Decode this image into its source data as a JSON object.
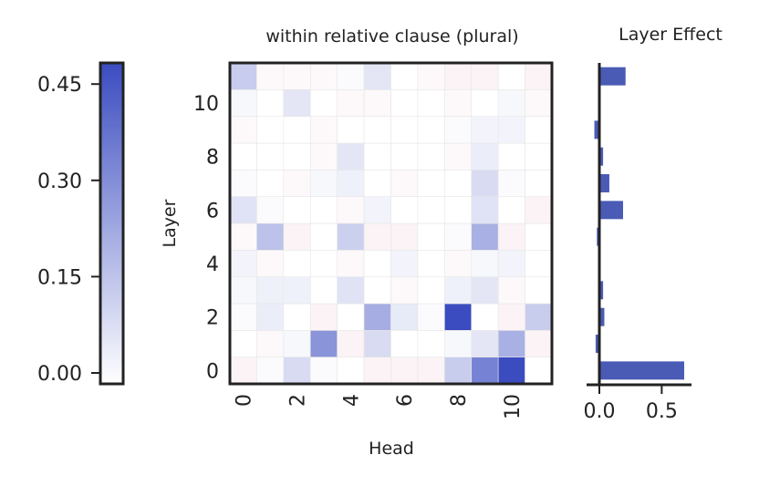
{
  "colors": {
    "positive": "#3b4cc0",
    "negative": "#b40426",
    "bar": "#4a5bb5",
    "frame": "#222222"
  },
  "chart_data": [
    {
      "type": "heatmap",
      "title": "within relative clause (plural)",
      "xlabel": "Head",
      "ylabel": "Layer",
      "x_ticks": [
        "0",
        "2",
        "4",
        "6",
        "8",
        "10"
      ],
      "y_ticks": [
        "0",
        "2",
        "4",
        "6",
        "8",
        "10"
      ],
      "rows_bottom_to_top": [
        [
          -0.02,
          0.01,
          0.1,
          0.01,
          0.0,
          -0.02,
          -0.02,
          -0.02,
          0.14,
          0.35,
          0.5,
          0.0
        ],
        [
          0.0,
          -0.01,
          0.02,
          0.3,
          -0.02,
          0.1,
          0.0,
          0.0,
          0.02,
          0.07,
          0.22,
          -0.02
        ],
        [
          0.01,
          0.05,
          0.0,
          -0.02,
          0.0,
          0.23,
          0.06,
          0.01,
          0.5,
          0.0,
          -0.02,
          0.14
        ],
        [
          0.02,
          0.04,
          0.04,
          0.0,
          0.08,
          0.0,
          -0.01,
          0.0,
          0.04,
          0.07,
          -0.01,
          0.0
        ],
        [
          0.03,
          -0.01,
          0.0,
          0.0,
          -0.01,
          0.0,
          0.03,
          0.0,
          -0.01,
          0.02,
          0.03,
          0.0
        ],
        [
          -0.01,
          0.17,
          -0.02,
          0.0,
          0.13,
          -0.02,
          -0.02,
          0.0,
          0.01,
          0.22,
          -0.02,
          0.0
        ],
        [
          0.08,
          0.01,
          0.0,
          0.0,
          -0.01,
          0.03,
          0.0,
          0.0,
          0.0,
          0.08,
          0.0,
          -0.02
        ],
        [
          0.01,
          0.0,
          -0.01,
          0.02,
          0.04,
          0.0,
          -0.01,
          0.0,
          0.0,
          0.1,
          0.01,
          0.0
        ],
        [
          0.0,
          0.0,
          0.0,
          -0.01,
          0.07,
          0.0,
          0.0,
          0.0,
          -0.01,
          0.05,
          0.0,
          0.0
        ],
        [
          -0.01,
          0.0,
          0.0,
          -0.01,
          0.0,
          0.0,
          0.0,
          0.0,
          0.01,
          0.03,
          0.03,
          0.0
        ],
        [
          0.02,
          0.0,
          0.07,
          0.0,
          -0.01,
          -0.01,
          0.0,
          0.0,
          -0.01,
          0.0,
          0.02,
          -0.01
        ],
        [
          0.14,
          -0.01,
          -0.01,
          -0.01,
          0.01,
          0.07,
          0.0,
          -0.01,
          -0.02,
          -0.02,
          0.0,
          -0.02
        ]
      ],
      "vmin": 0.0,
      "vmax": 0.5
    },
    {
      "type": "bar",
      "orientation": "horizontal",
      "title": "Layer Effect",
      "categories": [
        "0",
        "1",
        "2",
        "3",
        "4",
        "5",
        "6",
        "7",
        "8",
        "9",
        "10",
        "11"
      ],
      "values": [
        0.68,
        -0.03,
        0.04,
        0.03,
        0.0,
        -0.02,
        0.19,
        0.08,
        0.03,
        -0.04,
        0.0,
        0.21
      ],
      "x_ticks": [
        "0.0",
        "0.5"
      ],
      "xlim": [
        -0.1,
        0.75
      ]
    },
    {
      "type": "colorbar",
      "ticks": [
        "0.00",
        "0.15",
        "0.30",
        "0.45"
      ],
      "tick_values": [
        0.0,
        0.15,
        0.3,
        0.45
      ],
      "vmin": 0.0,
      "vmax": 0.5
    }
  ]
}
